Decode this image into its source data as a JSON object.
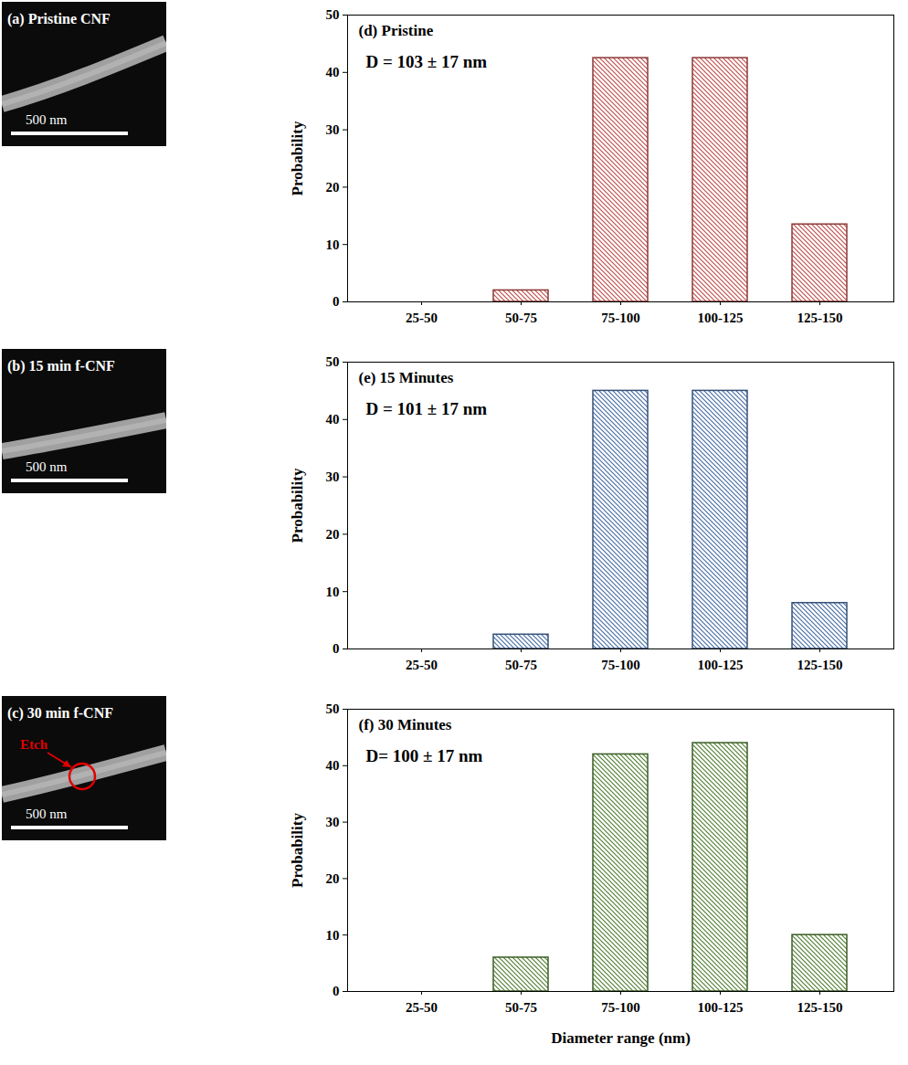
{
  "images": [
    {
      "label": "(a) Pristine CNF",
      "scale_bar": "500 nm"
    },
    {
      "label": "(b) 15 min f-CNF",
      "scale_bar": "500 nm"
    },
    {
      "label": "(c) 30 min f-CNF",
      "scale_bar": "500 nm",
      "annotation": "Etch"
    }
  ],
  "chart_data": [
    {
      "type": "bar",
      "title": "(d) Pristine",
      "annotation": "D = 103 ± 17 nm",
      "categories": [
        "25-50",
        "50-75",
        "75-100",
        "100-125",
        "125-150"
      ],
      "values": [
        0,
        2,
        42.5,
        42.5,
        13.5
      ],
      "color": "#c0504d",
      "y_label": "Probability",
      "ylim": [
        0,
        50
      ],
      "yticks": [
        0,
        10,
        20,
        30,
        40,
        50
      ]
    },
    {
      "type": "bar",
      "title": "(e) 15 Minutes",
      "annotation": "D = 101 ± 17 nm",
      "categories": [
        "25-50",
        "50-75",
        "75-100",
        "100-125",
        "125-150"
      ],
      "values": [
        0,
        2.5,
        45,
        45,
        8
      ],
      "color": "#4a6fa5",
      "y_label": "Probability",
      "ylim": [
        0,
        50
      ],
      "yticks": [
        0,
        10,
        20,
        30,
        40,
        50
      ]
    },
    {
      "type": "bar",
      "title": "(f) 30 Minutes",
      "annotation": "D= 100 ± 17 nm",
      "categories": [
        "25-50",
        "50-75",
        "75-100",
        "100-125",
        "125-150"
      ],
      "values": [
        0,
        6,
        42,
        44,
        10
      ],
      "color": "#538135",
      "x_label": "Diameter range (nm)",
      "y_label": "Probability",
      "ylim": [
        0,
        50
      ],
      "yticks": [
        0,
        10,
        20,
        30,
        40,
        50
      ]
    }
  ]
}
